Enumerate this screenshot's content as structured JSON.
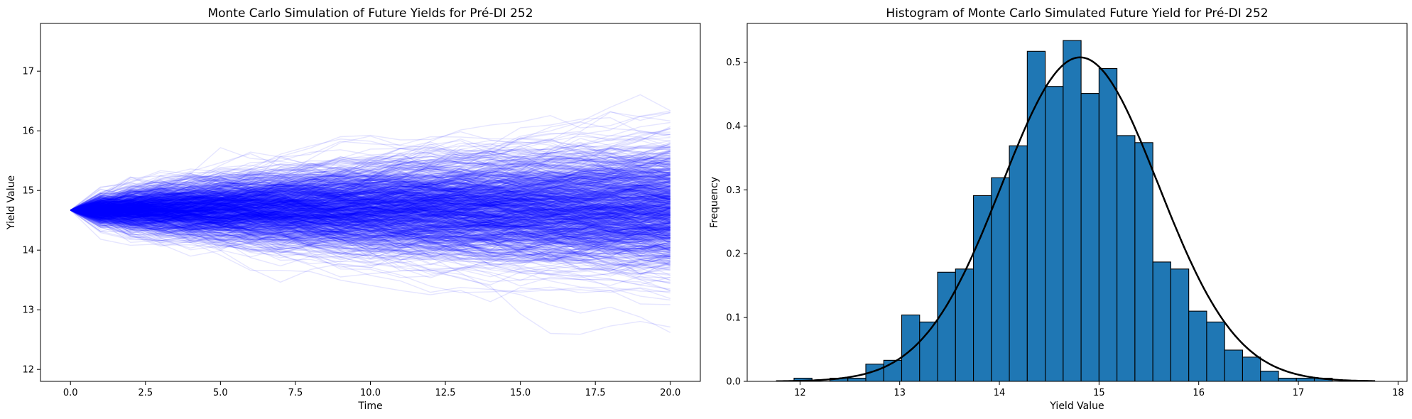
{
  "chart_data": [
    {
      "type": "line",
      "title": "Monte Carlo Simulation of Future Yields for Pré-DI 252",
      "xlabel": "Time",
      "ylabel": "Yield Value",
      "xlim": [
        -1.0,
        21.0
      ],
      "ylim": [
        11.8,
        17.8
      ],
      "x_ticks": [
        0.0,
        2.5,
        5.0,
        7.5,
        10.0,
        12.5,
        15.0,
        17.5,
        20.0
      ],
      "x_tick_labels": [
        "0.0",
        "2.5",
        "5.0",
        "7.5",
        "10.0",
        "12.5",
        "15.0",
        "17.5",
        "20.0"
      ],
      "y_ticks": [
        12,
        13,
        14,
        15,
        16,
        17
      ],
      "y_tick_labels": [
        "12",
        "13",
        "14",
        "15",
        "16",
        "17"
      ],
      "simulation": {
        "n_paths": 1000,
        "n_steps": 20,
        "initial_value": 14.67,
        "step_std": 0.1175,
        "line_color": "#0000ff",
        "line_alpha": 0.1
      },
      "grid": false
    },
    {
      "type": "bar",
      "title": "Histogram of Monte Carlo Simulated Future Yield for Pré-DI 252",
      "xlabel": "Yield Value",
      "ylabel": "Frequency",
      "xlim": [
        11.47,
        18.09
      ],
      "ylim": [
        0,
        0.5607
      ],
      "x_ticks": [
        12,
        13,
        14,
        15,
        16,
        17,
        18
      ],
      "x_tick_labels": [
        "12",
        "13",
        "14",
        "15",
        "16",
        "17",
        "18"
      ],
      "y_ticks": [
        0.0,
        0.1,
        0.2,
        0.3,
        0.4,
        0.5
      ],
      "y_tick_labels": [
        "0.0",
        "0.1",
        "0.2",
        "0.3",
        "0.4",
        "0.5"
      ],
      "bin_edges": [
        11.76,
        11.94,
        12.12,
        12.3,
        12.48,
        12.66,
        12.84,
        13.02,
        13.2,
        13.38,
        13.56,
        13.74,
        13.92,
        14.1,
        14.28,
        14.46,
        14.64,
        14.82,
        15.0,
        15.18,
        15.36,
        15.54,
        15.72,
        15.9,
        16.08,
        16.26,
        16.44,
        16.62,
        16.8,
        16.98,
        17.16,
        17.34,
        17.52
      ],
      "values": [
        0.0,
        0.005,
        0.0,
        0.005,
        0.005,
        0.027,
        0.033,
        0.104,
        0.093,
        0.171,
        0.176,
        0.291,
        0.319,
        0.369,
        0.517,
        0.462,
        0.534,
        0.451,
        0.49,
        0.385,
        0.374,
        0.187,
        0.176,
        0.11,
        0.093,
        0.049,
        0.038,
        0.016,
        0.005,
        0.005,
        0.005,
        0.0
      ],
      "bar_color": "#1f77b4",
      "fit_curve": {
        "type": "normal-pdf",
        "mean": 14.81,
        "std": 0.786,
        "color": "#000000"
      },
      "grid": false
    }
  ]
}
